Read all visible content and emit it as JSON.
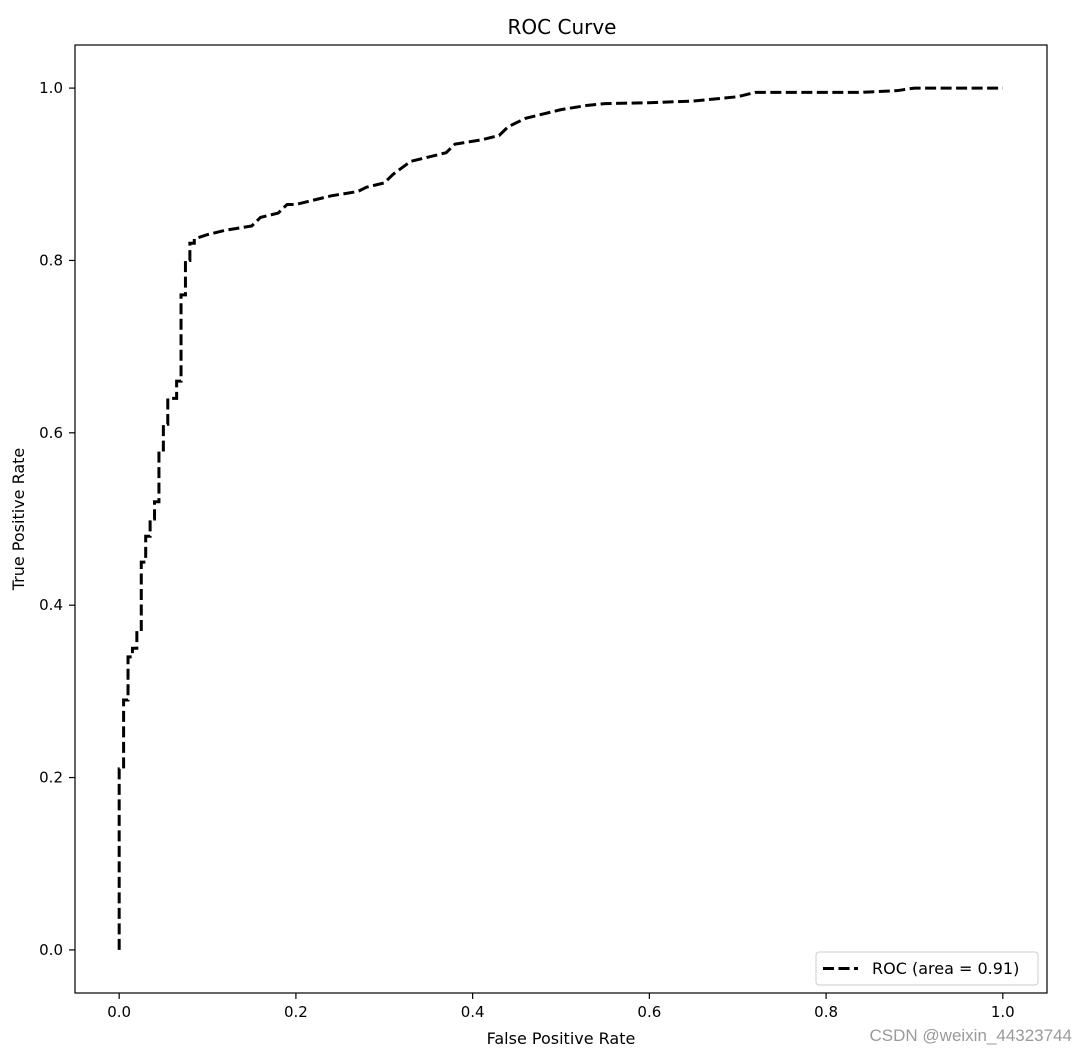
{
  "chart_data": {
    "type": "line",
    "title": "ROC Curve",
    "xlabel": "False Positive Rate",
    "ylabel": "True Positive Rate",
    "xlim": [
      -0.05,
      1.05
    ],
    "ylim": [
      -0.05,
      1.05
    ],
    "xticks": [
      0.0,
      0.2,
      0.4,
      0.6,
      0.8,
      1.0
    ],
    "yticks": [
      0.0,
      0.2,
      0.4,
      0.6,
      0.8,
      1.0
    ],
    "xtick_labels": [
      "0.0",
      "0.2",
      "0.4",
      "0.6",
      "0.8",
      "1.0"
    ],
    "ytick_labels": [
      "0.0",
      "0.2",
      "0.4",
      "0.6",
      "0.8",
      "1.0"
    ],
    "grid": false,
    "legend_position": "lower-right",
    "series": [
      {
        "name": "ROC (area = 0.91)",
        "color": "#000000",
        "line_style": "dashed",
        "x": [
          0.0,
          0.0,
          0.005,
          0.005,
          0.01,
          0.01,
          0.015,
          0.015,
          0.02,
          0.02,
          0.025,
          0.025,
          0.03,
          0.03,
          0.035,
          0.035,
          0.04,
          0.04,
          0.045,
          0.045,
          0.05,
          0.05,
          0.055,
          0.055,
          0.06,
          0.06,
          0.065,
          0.065,
          0.07,
          0.07,
          0.075,
          0.075,
          0.08,
          0.08,
          0.085,
          0.085,
          0.1,
          0.12,
          0.15,
          0.16,
          0.18,
          0.19,
          0.2,
          0.22,
          0.24,
          0.27,
          0.28,
          0.3,
          0.31,
          0.33,
          0.35,
          0.37,
          0.38,
          0.41,
          0.43,
          0.44,
          0.46,
          0.48,
          0.5,
          0.53,
          0.55,
          0.6,
          0.65,
          0.7,
          0.72,
          0.76,
          0.8,
          0.84,
          0.88,
          0.9,
          0.95,
          1.0
        ],
        "y": [
          0.0,
          0.21,
          0.21,
          0.29,
          0.29,
          0.34,
          0.34,
          0.35,
          0.35,
          0.37,
          0.37,
          0.45,
          0.45,
          0.48,
          0.48,
          0.5,
          0.5,
          0.52,
          0.52,
          0.58,
          0.58,
          0.61,
          0.61,
          0.64,
          0.64,
          0.64,
          0.64,
          0.66,
          0.66,
          0.76,
          0.76,
          0.8,
          0.8,
          0.82,
          0.82,
          0.825,
          0.83,
          0.835,
          0.84,
          0.85,
          0.855,
          0.865,
          0.865,
          0.87,
          0.875,
          0.88,
          0.885,
          0.89,
          0.9,
          0.915,
          0.92,
          0.925,
          0.935,
          0.94,
          0.945,
          0.955,
          0.965,
          0.97,
          0.975,
          0.98,
          0.982,
          0.983,
          0.985,
          0.99,
          0.995,
          0.995,
          0.995,
          0.995,
          0.997,
          1.0,
          1.0,
          1.0
        ]
      }
    ]
  },
  "watermark": "CSDN @weixin_44323744"
}
